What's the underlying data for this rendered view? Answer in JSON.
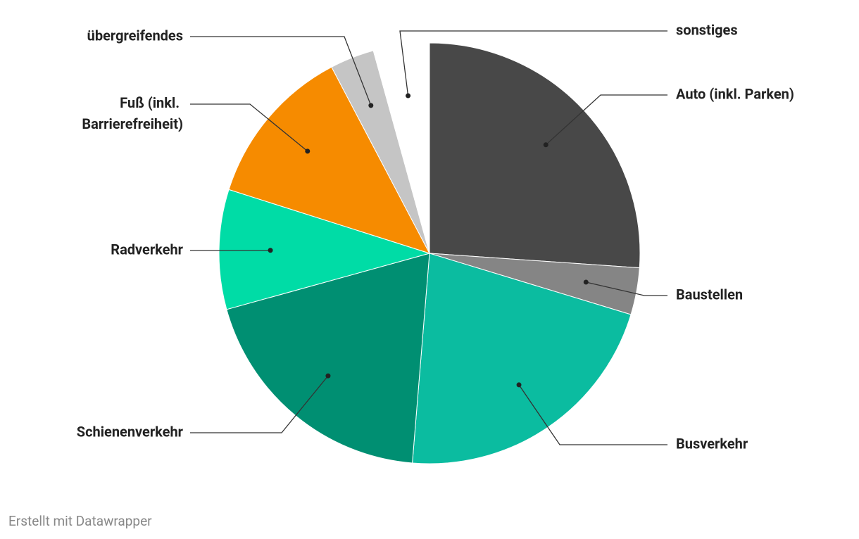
{
  "chart_data": {
    "type": "pie",
    "categories": [
      "Auto (inkl. Parken)",
      "Baustellen",
      "Busverkehr",
      "Schienenverkehr",
      "Radverkehr",
      "Fuß (inkl. Barrierefreiheit)",
      "übergreifendes",
      "sonstiges"
    ],
    "values": [
      26.1,
      3.6,
      21.6,
      19.4,
      9.2,
      12.4,
      3.4,
      4.3
    ],
    "colors": [
      "#484848",
      "#858585",
      "#0bbca0",
      "#008f72",
      "#00dca6",
      "#f68b00",
      "#c5c5c5",
      "#ffffff"
    ],
    "footer": "Erstellt mit Datawrapper"
  }
}
